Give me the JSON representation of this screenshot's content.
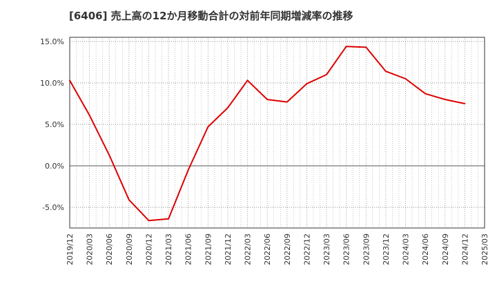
{
  "chart_data": {
    "type": "line",
    "title": "[6406]  売上高の12か月移動合計の対前年同期増減率の推移",
    "xlabel": "",
    "ylabel": "",
    "x_ticks": [
      "2019/12",
      "2020/03",
      "2020/06",
      "2020/09",
      "2020/12",
      "2021/03",
      "2021/06",
      "2021/09",
      "2021/12",
      "2022/03",
      "2022/06",
      "2022/09",
      "2022/12",
      "2023/03",
      "2023/06",
      "2023/09",
      "2023/12",
      "2024/03",
      "2024/06",
      "2024/09",
      "2024/12",
      "2025/03"
    ],
    "y_ticks": [
      "15.0%",
      "10.0%",
      "5.0%",
      "0.0%",
      "-5.0%"
    ],
    "y_tick_values": [
      15.0,
      10.0,
      5.0,
      0.0,
      -5.0
    ],
    "ylim": [
      -7.5,
      15.5
    ],
    "grid": true,
    "series": [
      {
        "color": "#dd0000",
        "x": [
          "2019/12",
          "2020/03",
          "2020/06",
          "2020/09",
          "2020/12",
          "2021/03",
          "2021/06",
          "2021/09",
          "2021/12",
          "2022/03",
          "2022/06",
          "2022/09",
          "2022/12",
          "2023/03",
          "2023/06",
          "2023/09",
          "2023/12",
          "2024/03",
          "2024/06",
          "2024/09",
          "2024/12"
        ],
        "values": [
          10.3,
          6.1,
          1.3,
          -4.1,
          -6.6,
          -6.4,
          -0.5,
          4.7,
          7.0,
          10.3,
          8.0,
          7.7,
          9.9,
          11.0,
          14.4,
          14.3,
          11.4,
          10.5,
          8.7,
          8.0,
          7.5
        ]
      }
    ]
  }
}
